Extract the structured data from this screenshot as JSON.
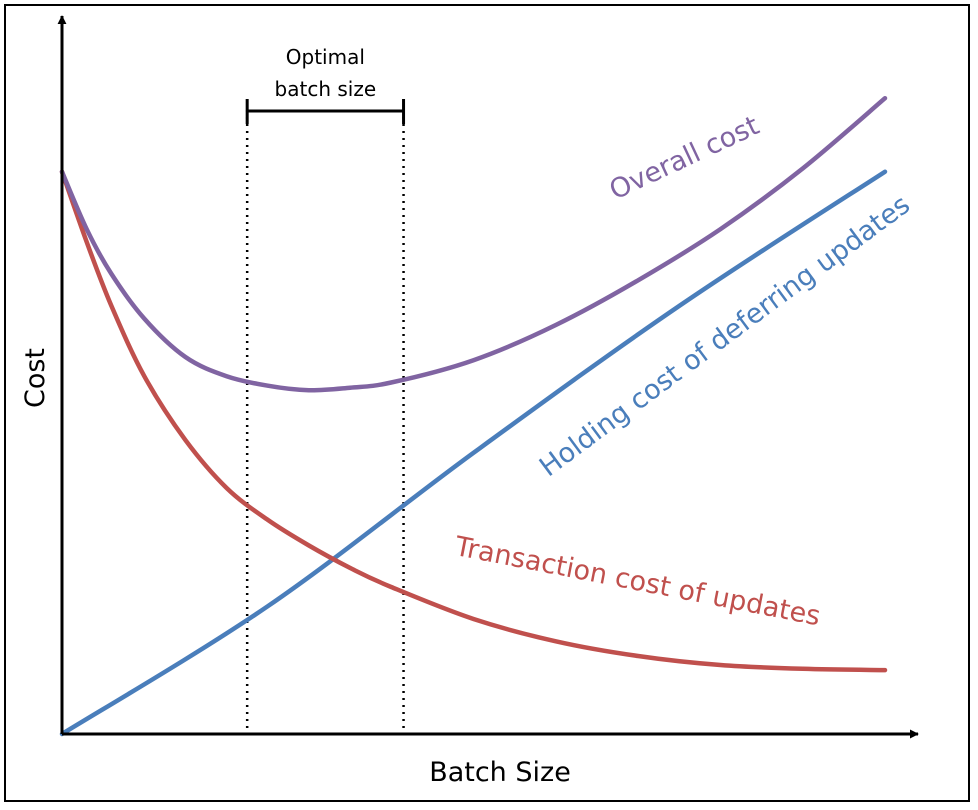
{
  "chart_data": {
    "type": "line",
    "title": "",
    "xlabel": "Batch Size",
    "ylabel": "Cost",
    "xlim": [
      0,
      10
    ],
    "ylim": [
      0,
      10
    ],
    "grid": false,
    "legend": "none",
    "series": [
      {
        "name": "Overall cost",
        "color": "#8064a2",
        "x": [
          0,
          0.3,
          0.6,
          1.0,
          1.5,
          2.0,
          2.5,
          3.0,
          3.5,
          4.0,
          5.0,
          6.0,
          7.0,
          8.0,
          9.0,
          10.0
        ],
        "y": [
          8.8,
          7.9,
          7.2,
          6.5,
          5.9,
          5.6,
          5.45,
          5.38,
          5.42,
          5.5,
          5.85,
          6.4,
          7.1,
          7.9,
          8.85,
          9.95
        ]
      },
      {
        "name": "Holding cost of deferring updates",
        "color": "#4a7ebb",
        "x": [
          0,
          2.5,
          5.0,
          7.5,
          10.0
        ],
        "y": [
          0,
          2.0,
          4.4,
          6.7,
          8.8
        ]
      },
      {
        "name": "Transaction cost of updates",
        "color": "#c0504d",
        "x": [
          0,
          0.3,
          0.6,
          1.0,
          1.5,
          2.0,
          2.5,
          3.0,
          3.5,
          4.0,
          5.0,
          6.0,
          7.0,
          8.0,
          9.0,
          10.0
        ],
        "y": [
          8.8,
          7.7,
          6.7,
          5.6,
          4.6,
          3.85,
          3.35,
          2.95,
          2.6,
          2.3,
          1.8,
          1.45,
          1.22,
          1.08,
          1.02,
          1.0
        ]
      }
    ],
    "annotations": {
      "optimal_label_line1": "Optimal",
      "optimal_label_line2": "batch size",
      "optimal_range": [
        2.25,
        4.15
      ]
    },
    "labels": {
      "overall": "Overall cost",
      "holding": "Holding cost of deferring updates",
      "transaction": "Transaction cost of updates"
    }
  }
}
